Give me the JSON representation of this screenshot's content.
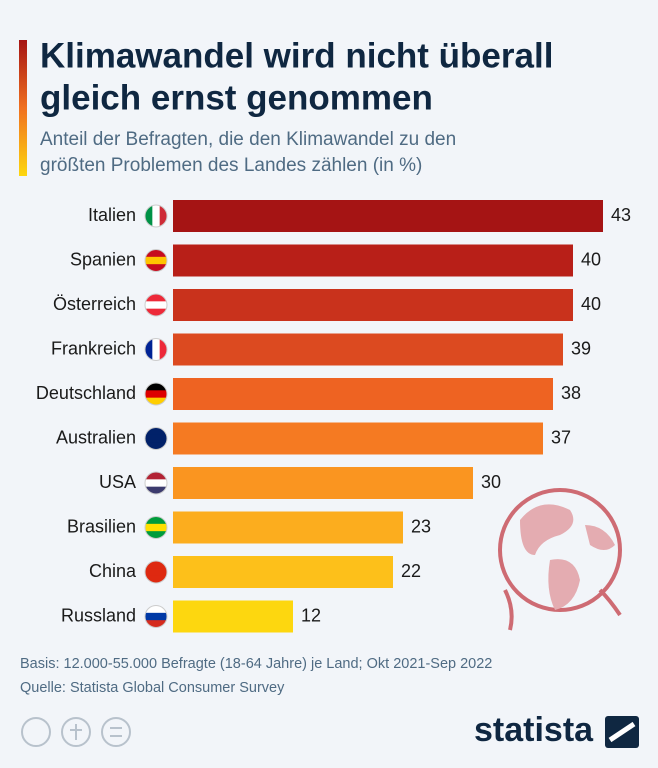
{
  "chart_data": {
    "type": "bar",
    "orientation": "horizontal",
    "title": [
      "Klimawandel wird nicht überall",
      "gleich ernst genommen"
    ],
    "subtitle": [
      "Anteil der Befragten, die den Klimawandel zu den",
      "größten Problemen des Landes zählen (in %)"
    ],
    "categories": [
      "Italien",
      "Spanien",
      "Österreich",
      "Frankreich",
      "Deutschland",
      "Australien",
      "USA",
      "Brasilien",
      "China",
      "Russland"
    ],
    "values": [
      43,
      40,
      40,
      39,
      38,
      37,
      30,
      23,
      22,
      12
    ],
    "colors": [
      "#a51414",
      "#b81f18",
      "#c9321c",
      "#dc4a20",
      "#ee6322",
      "#f57a22",
      "#fa9520",
      "#fcad1e",
      "#fdc01a",
      "#fdd70f"
    ],
    "footer": [
      "Basis: 12.000-55.000 Befragte (18-64 Jahre) je Land; Okt 2021-Sep 2022",
      "Quelle: Statista Global Consumer Survey"
    ],
    "brand": "statista"
  }
}
